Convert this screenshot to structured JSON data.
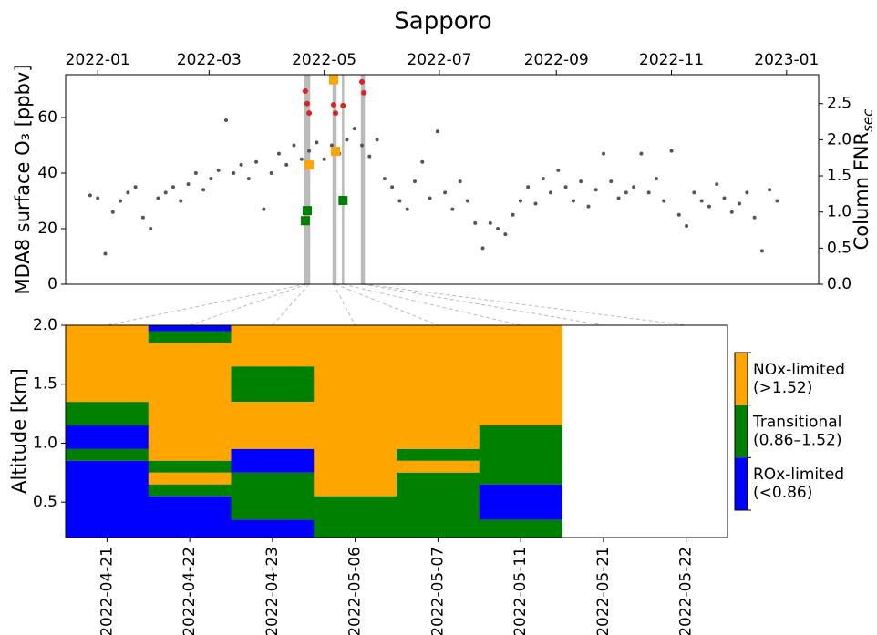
{
  "chart_data": [
    {
      "type": "scatter",
      "title": "Sapporo",
      "ylabel": "MDA8 surface O₃ [ppbv]",
      "y2label": "Column FNR",
      "y2label_sub": "sec",
      "xlim": [
        "2021-12-15",
        "2023-01-18"
      ],
      "xticks": [
        {
          "value": "2022-01-01",
          "label": "2022-01"
        },
        {
          "value": "2022-03-01",
          "label": "2022-03"
        },
        {
          "value": "2022-05-01",
          "label": "2022-05"
        },
        {
          "value": "2022-07-01",
          "label": "2022-07"
        },
        {
          "value": "2022-09-01",
          "label": "2022-09"
        },
        {
          "value": "2022-11-01",
          "label": "2022-11"
        },
        {
          "value": "2023-01-01",
          "label": "2023-01"
        }
      ],
      "ylim": [
        0,
        75.4
      ],
      "yticks": [
        0,
        20,
        40,
        60
      ],
      "y2lim": [
        0,
        2.9
      ],
      "y2ticks": [
        {
          "value": 0,
          "label": "0.0"
        },
        0.5,
        {
          "value": 1,
          "label": "1.0"
        },
        1.5,
        {
          "value": 2,
          "label": "2.0"
        },
        2.5
      ],
      "highlight": [
        "2022-04-21",
        "2022-04-22",
        "2022-04-23",
        "2022-05-06",
        "2022-05-07",
        "2022-05-11",
        "2022-05-21",
        "2022-05-22"
      ],
      "series": [
        {
          "color": "#555555",
          "marker": "circle",
          "x": [
            "2021-12-28",
            "2022-01-01",
            "2022-01-05",
            "2022-01-09",
            "2022-01-13",
            "2022-01-17",
            "2022-01-21",
            "2022-01-25",
            "2022-01-29",
            "2022-02-02",
            "2022-02-06",
            "2022-02-10",
            "2022-02-14",
            "2022-02-18",
            "2022-02-22",
            "2022-02-26",
            "2022-03-02",
            "2022-03-06",
            "2022-03-10",
            "2022-03-14",
            "2022-03-18",
            "2022-03-22",
            "2022-03-26",
            "2022-03-30",
            "2022-04-03",
            "2022-04-07",
            "2022-04-11",
            "2022-04-15",
            "2022-04-19",
            "2022-04-23",
            "2022-04-27",
            "2022-05-01",
            "2022-05-05",
            "2022-05-09",
            "2022-05-13",
            "2022-05-17",
            "2022-05-21",
            "2022-05-25",
            "2022-05-29",
            "2022-06-02",
            "2022-06-06",
            "2022-06-10",
            "2022-06-14",
            "2022-06-18",
            "2022-06-22",
            "2022-06-26",
            "2022-06-30",
            "2022-07-04",
            "2022-07-08",
            "2022-07-12",
            "2022-07-16",
            "2022-07-20",
            "2022-07-24",
            "2022-07-28",
            "2022-08-01",
            "2022-08-05",
            "2022-08-09",
            "2022-08-13",
            "2022-08-17",
            "2022-08-21",
            "2022-08-25",
            "2022-08-29",
            "2022-09-02",
            "2022-09-06",
            "2022-09-10",
            "2022-09-14",
            "2022-09-18",
            "2022-09-22",
            "2022-09-26",
            "2022-09-30",
            "2022-10-04",
            "2022-10-08",
            "2022-10-12",
            "2022-10-16",
            "2022-10-20",
            "2022-10-24",
            "2022-10-28",
            "2022-11-01",
            "2022-11-05",
            "2022-11-09",
            "2022-11-13",
            "2022-11-17",
            "2022-11-21",
            "2022-11-25",
            "2022-11-29",
            "2022-12-03",
            "2022-12-07",
            "2022-12-11",
            "2022-12-15",
            "2022-12-19",
            "2022-12-23",
            "2022-12-27"
          ],
          "values": [
            32,
            31,
            11,
            26,
            30,
            33,
            35,
            24,
            20,
            31,
            33,
            35,
            30,
            36,
            40,
            34,
            38,
            41,
            59,
            40,
            43,
            38,
            44,
            27,
            40,
            47,
            43,
            50,
            45,
            48,
            51,
            45,
            50,
            47,
            52,
            56,
            50,
            46,
            52,
            38,
            35,
            30,
            27,
            37,
            44,
            31,
            55,
            33,
            27,
            37,
            30,
            22,
            13,
            22,
            20,
            18,
            25,
            30,
            35,
            29,
            38,
            33,
            41,
            35,
            30,
            37,
            28,
            34,
            47,
            37,
            31,
            33,
            35,
            47,
            33,
            38,
            30,
            48,
            25,
            21,
            33,
            30,
            28,
            36,
            31,
            26,
            29,
            33,
            24,
            12,
            34,
            30
          ]
        },
        {
          "color": "#dd2222",
          "marker": "circle",
          "x": [
            "2022-04-21",
            "2022-04-22",
            "2022-04-23",
            "2022-05-06",
            "2022-05-07",
            "2022-05-11",
            "2022-05-21",
            "2022-05-22"
          ],
          "values": [
            69.5,
            65,
            61.6,
            64.6,
            61.6,
            64.3,
            72.8,
            68.9
          ]
        },
        {
          "axis": "y2",
          "marker": "square",
          "colors": [
            "#008000",
            "#008000",
            "#ffa500",
            "#ffa500",
            "#ffa500",
            "#008000"
          ],
          "x": [
            "2022-04-21",
            "2022-04-22",
            "2022-04-23",
            "2022-05-06",
            "2022-05-07",
            "2022-05-11"
          ],
          "values": [
            0.88,
            1.02,
            1.65,
            2.83,
            1.84,
            1.16
          ]
        }
      ]
    },
    {
      "type": "heatmap",
      "ylabel": "Altitude [km]",
      "categories": [
        "2022-04-21",
        "2022-04-22",
        "2022-04-23",
        "2022-05-06",
        "2022-05-07",
        "2022-05-11",
        "2022-05-21",
        "2022-05-22"
      ],
      "ylim": [
        0.2,
        2.0
      ],
      "yticks": [
        0.5,
        {
          "value": 1,
          "label": "1.0"
        },
        1.5,
        {
          "value": 2,
          "label": "2.0"
        }
      ],
      "columns": [
        [
          {
            "from": 1.35,
            "to": 2.0,
            "color": "#ffa500"
          },
          {
            "from": 1.15,
            "to": 1.35,
            "color": "#008000"
          },
          {
            "from": 0.95,
            "to": 1.15,
            "color": "#0000ff"
          },
          {
            "from": 0.85,
            "to": 0.95,
            "color": "#008000"
          },
          {
            "from": 0.2,
            "to": 0.85,
            "color": "#0000ff"
          }
        ],
        [
          {
            "from": 1.95,
            "to": 2.0,
            "color": "#0000ff"
          },
          {
            "from": 1.85,
            "to": 1.95,
            "color": "#008000"
          },
          {
            "from": 0.85,
            "to": 1.85,
            "color": "#ffa500"
          },
          {
            "from": 0.75,
            "to": 0.85,
            "color": "#008000"
          },
          {
            "from": 0.65,
            "to": 0.75,
            "color": "#ffa500"
          },
          {
            "from": 0.55,
            "to": 0.65,
            "color": "#008000"
          },
          {
            "from": 0.2,
            "to": 0.55,
            "color": "#0000ff"
          }
        ],
        [
          {
            "from": 1.65,
            "to": 2.0,
            "color": "#ffa500"
          },
          {
            "from": 1.35,
            "to": 1.65,
            "color": "#008000"
          },
          {
            "from": 0.95,
            "to": 1.35,
            "color": "#ffa500"
          },
          {
            "from": 0.75,
            "to": 0.95,
            "color": "#0000ff"
          },
          {
            "from": 0.35,
            "to": 0.75,
            "color": "#008000"
          },
          {
            "from": 0.2,
            "to": 0.35,
            "color": "#0000ff"
          }
        ],
        [
          {
            "from": 0.55,
            "to": 2.0,
            "color": "#ffa500"
          },
          {
            "from": 0.2,
            "to": 0.55,
            "color": "#008000"
          }
        ],
        [
          {
            "from": 0.95,
            "to": 2.0,
            "color": "#ffa500"
          },
          {
            "from": 0.85,
            "to": 0.95,
            "color": "#008000"
          },
          {
            "from": 0.75,
            "to": 0.85,
            "color": "#ffa500"
          },
          {
            "from": 0.2,
            "to": 0.75,
            "color": "#008000"
          }
        ],
        [
          {
            "from": 1.15,
            "to": 2.0,
            "color": "#ffa500"
          },
          {
            "from": 0.65,
            "to": 1.15,
            "color": "#008000"
          },
          {
            "from": 0.35,
            "to": 0.65,
            "color": "#0000ff"
          },
          {
            "from": 0.2,
            "to": 0.35,
            "color": "#008000"
          }
        ],
        [],
        []
      ],
      "legend": [
        {
          "name": "NOx-limited",
          "range": "(>1.52)",
          "color": "#ffa500"
        },
        {
          "name": "Transitional",
          "range": "(0.86–1.52)",
          "color": "#008000"
        },
        {
          "name": "ROx-limited",
          "range": "(<0.86)",
          "color": "#0000ff"
        }
      ]
    }
  ]
}
